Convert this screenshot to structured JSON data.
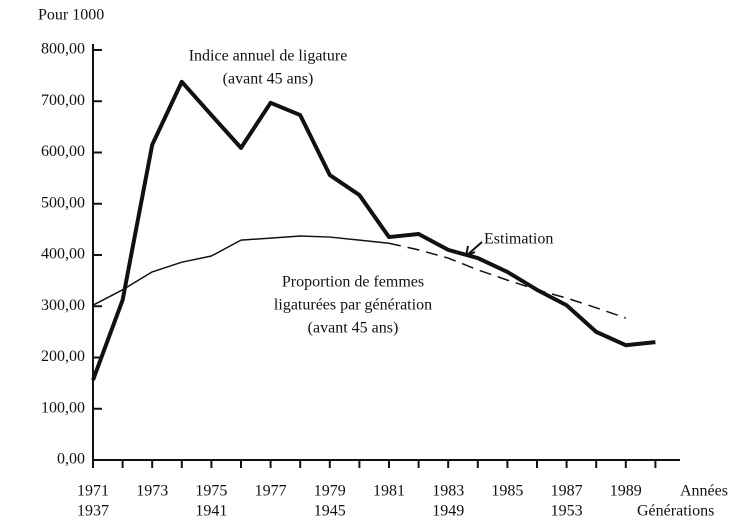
{
  "chart_data": {
    "type": "line",
    "y_label": "Pour 1000",
    "x_label": "Années",
    "x2_label": "Générations",
    "x": [
      1971,
      1972,
      1973,
      1974,
      1975,
      1976,
      1977,
      1978,
      1979,
      1980,
      1981,
      1982,
      1983,
      1984,
      1985,
      1986,
      1987,
      1988,
      1989,
      1990
    ],
    "series": [
      {
        "name": [
          "Indice annuel de ligature",
          "(avant 45 ans)"
        ],
        "color": "#111111",
        "width": 4,
        "dashed": false,
        "values": [
          156,
          312,
          615,
          738,
          673,
          609,
          697,
          673,
          556,
          517,
          435,
          441,
          410,
          394,
          367,
          332,
          302,
          250,
          224,
          230
        ]
      },
      {
        "name": [
          "Proportion de femmes",
          "ligaturées par génération",
          "(avant 45 ans)"
        ],
        "color": "#111111",
        "width": 1.5,
        "dashed": false,
        "values": [
          302,
          332,
          367,
          386,
          398,
          429,
          433,
          437,
          435,
          429,
          423,
          null,
          null,
          null,
          null,
          null,
          null,
          null,
          null,
          null
        ]
      },
      {
        "name": [
          "Estimation"
        ],
        "color": "#111111",
        "width": 1.5,
        "dashed": true,
        "values": [
          null,
          null,
          null,
          null,
          null,
          null,
          null,
          null,
          null,
          null,
          423,
          410,
          394,
          371,
          351,
          332,
          316,
          297,
          277,
          null
        ]
      }
    ],
    "xlim": [
      1971,
      1991
    ],
    "ylim": [
      0,
      800
    ],
    "xticks": [
      1971,
      1973,
      1975,
      1977,
      1979,
      1981,
      1983,
      1985,
      1987,
      1989
    ],
    "xminorticks": [
      1972,
      1974,
      1976,
      1978,
      1980,
      1982,
      1984,
      1986,
      1988,
      1990
    ],
    "x2ticks": [
      {
        "value": 1971,
        "label": "1937"
      },
      {
        "value": 1975,
        "label": "1941"
      },
      {
        "value": 1979,
        "label": "1945"
      },
      {
        "value": 1983,
        "label": "1949"
      },
      {
        "value": 1987,
        "label": "1953"
      }
    ],
    "yticks": [
      {
        "value": 0,
        "label": "0,00"
      },
      {
        "value": 100,
        "label": "100,00"
      },
      {
        "value": 200,
        "label": "200,00"
      },
      {
        "value": 300,
        "label": "300,00"
      },
      {
        "value": 400,
        "label": "400,00"
      },
      {
        "value": 500,
        "label": "500,00"
      },
      {
        "value": 600,
        "label": "600,00"
      },
      {
        "value": 700,
        "label": "700,00"
      },
      {
        "value": 800,
        "label": "800,00"
      }
    ]
  }
}
